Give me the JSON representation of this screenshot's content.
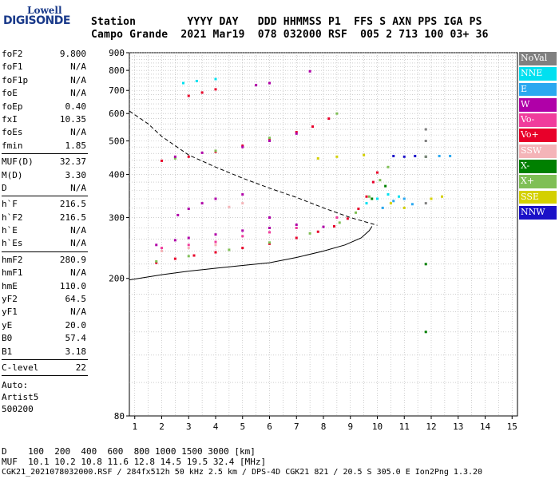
{
  "logo": {
    "line1": "Lowell",
    "line2": "DIGISONDE"
  },
  "header": {
    "row1": "Station        YYYY DAY   DDD HHMMSS P1  FFS S AXN PPS IGA PS",
    "row2": "Campo Grande  2021 Mar19  078 032000 RSF  005 2 713 100 03+ 36"
  },
  "params": [
    {
      "group": [
        {
          "k": "foF2",
          "v": "9.800"
        },
        {
          "k": "foF1",
          "v": "N/A"
        },
        {
          "k": "foF1p",
          "v": "N/A"
        },
        {
          "k": "foE",
          "v": "N/A"
        },
        {
          "k": "foEp",
          "v": "0.40"
        },
        {
          "k": "fxI",
          "v": "10.35"
        },
        {
          "k": "foEs",
          "v": "N/A"
        },
        {
          "k": "fmin",
          "v": "1.85"
        }
      ]
    },
    {
      "group": [
        {
          "k": "MUF(D)",
          "v": "32.37"
        },
        {
          "k": "M(D)",
          "v": "3.30"
        },
        {
          "k": "D",
          "v": "N/A"
        }
      ]
    },
    {
      "group": [
        {
          "k": "h`F",
          "v": "216.5"
        },
        {
          "k": "h`F2",
          "v": "216.5"
        },
        {
          "k": "h`E",
          "v": "N/A"
        },
        {
          "k": "h`Es",
          "v": "N/A"
        }
      ]
    },
    {
      "group": [
        {
          "k": "hmF2",
          "v": "280.9"
        },
        {
          "k": "hmF1",
          "v": "N/A"
        },
        {
          "k": "hmE",
          "v": "110.0"
        },
        {
          "k": "yF2",
          "v": "64.5"
        },
        {
          "k": "yF1",
          "v": "N/A"
        },
        {
          "k": "yE",
          "v": "20.0"
        },
        {
          "k": "B0",
          "v": "57.4"
        },
        {
          "k": "B1",
          "v": "3.18"
        }
      ]
    },
    {
      "group": [
        {
          "k": "C-level",
          "v": "22"
        }
      ]
    }
  ],
  "auto": {
    "line1": "Auto:",
    "line2": "Artist5",
    "line3": "500200"
  },
  "legend": [
    {
      "label": "NoVal",
      "color": "#808080"
    },
    {
      "label": "NNE",
      "color": "#00e0f0"
    },
    {
      "label": "E",
      "color": "#2aa8f0"
    },
    {
      "label": "W",
      "color": "#b000a8"
    },
    {
      "label": "Vo-",
      "color": "#f03c9c"
    },
    {
      "label": "Vo+",
      "color": "#e8002a"
    },
    {
      "label": "SSW",
      "color": "#f4b4b8"
    },
    {
      "label": "X-",
      "color": "#008000"
    },
    {
      "label": "X+",
      "color": "#7fbf55"
    },
    {
      "label": "SSE",
      "color": "#d4d000"
    },
    {
      "label": "NNW",
      "color": "#1a10c8"
    }
  ],
  "footer": {
    "row1": "D    100  200  400  600  800 1000 1500 3000 [km]",
    "row2": "MUF  10.1 10.2 10.8 11.6 12.8 14.5 19.5 32.4 [MHz]",
    "row3": "CGK21_2021078032000.RSF / 284fx512h 50 kHz 2.5 km / DPS-4D CGK21 821 / 20.5 S 305.0 E Ion2Png 1.3.20"
  },
  "chart_data": {
    "type": "scatter",
    "title": "",
    "xlabel": "",
    "ylabel": "",
    "xlim": [
      0.8,
      15.2
    ],
    "ylim": [
      80,
      900
    ],
    "y_scale": "log",
    "x_ticks": [
      "1",
      "2",
      "3",
      "4",
      "5",
      "6",
      "7",
      "8",
      "9",
      "10",
      "11",
      "12",
      "13",
      "14",
      "15"
    ],
    "y_ticks": [
      "80",
      "200",
      "300",
      "400",
      "500",
      "600",
      "700",
      "800",
      "900"
    ],
    "grid": true,
    "series": [
      {
        "name": "Vo+",
        "points": [
          [
            1.8,
            222
          ],
          [
            2.5,
            228
          ],
          [
            3.2,
            233
          ],
          [
            4,
            238
          ],
          [
            5,
            245
          ],
          [
            6,
            252
          ],
          [
            7,
            262
          ],
          [
            7.8,
            273
          ],
          [
            8.4,
            283
          ],
          [
            8.9,
            298
          ],
          [
            9.3,
            318
          ],
          [
            9.6,
            345
          ],
          [
            9.85,
            380
          ],
          [
            10.0,
            405
          ],
          [
            2,
            438
          ],
          [
            3,
            450
          ],
          [
            4,
            465
          ],
          [
            5,
            484
          ],
          [
            6,
            505
          ],
          [
            7,
            530
          ],
          [
            7.6,
            550
          ],
          [
            8.2,
            580
          ],
          [
            3,
            675
          ],
          [
            3.5,
            690
          ],
          [
            4,
            705
          ]
        ]
      },
      {
        "name": "X+",
        "points": [
          [
            1.8,
            224
          ],
          [
            3,
            232
          ],
          [
            4.5,
            242
          ],
          [
            6,
            254
          ],
          [
            7.5,
            270
          ],
          [
            8.6,
            290
          ],
          [
            9.2,
            310
          ],
          [
            9.7,
            345
          ],
          [
            10.1,
            385
          ],
          [
            10.4,
            420
          ],
          [
            2.5,
            445
          ],
          [
            4,
            468
          ],
          [
            6,
            510
          ],
          [
            8.5,
            600
          ]
        ]
      },
      {
        "name": "W",
        "points": [
          [
            1.8,
            250
          ],
          [
            2.5,
            258
          ],
          [
            3,
            262
          ],
          [
            4,
            268
          ],
          [
            5,
            275
          ],
          [
            6,
            280
          ],
          [
            7,
            286
          ],
          [
            8,
            282
          ],
          [
            2.6,
            305
          ],
          [
            3,
            318
          ],
          [
            3.5,
            330
          ],
          [
            4,
            340
          ],
          [
            5,
            350
          ],
          [
            6,
            300
          ],
          [
            2.5,
            450
          ],
          [
            3.5,
            462
          ],
          [
            5,
            480
          ],
          [
            6,
            500
          ],
          [
            7,
            525
          ],
          [
            5.5,
            725
          ],
          [
            6,
            735
          ],
          [
            7.5,
            795
          ]
        ]
      },
      {
        "name": "Vo-",
        "points": [
          [
            2,
            245
          ],
          [
            3,
            250
          ],
          [
            4,
            255
          ],
          [
            5,
            265
          ],
          [
            6,
            272
          ],
          [
            7,
            280
          ],
          [
            8.5,
            300
          ]
        ]
      },
      {
        "name": "SSW",
        "points": [
          [
            2,
            240
          ],
          [
            3,
            245
          ],
          [
            4,
            250
          ],
          [
            4.5,
            322
          ],
          [
            5,
            330
          ]
        ]
      },
      {
        "name": "NNE",
        "points": [
          [
            2.8,
            735
          ],
          [
            3.3,
            745
          ],
          [
            4,
            755
          ],
          [
            9.6,
            330
          ],
          [
            10,
            340
          ],
          [
            10.4,
            350
          ],
          [
            10.8,
            345
          ]
        ]
      },
      {
        "name": "E",
        "points": [
          [
            10.2,
            320
          ],
          [
            10.6,
            335
          ],
          [
            11,
            340
          ],
          [
            11.3,
            328
          ],
          [
            12.3,
            452
          ],
          [
            12.7,
            452
          ]
        ]
      },
      {
        "name": "SSE",
        "points": [
          [
            7.8,
            445
          ],
          [
            8.5,
            450
          ],
          [
            9.5,
            455
          ],
          [
            10.5,
            330
          ],
          [
            11,
            320
          ],
          [
            12,
            340
          ],
          [
            12.4,
            345
          ]
        ]
      },
      {
        "name": "X-",
        "points": [
          [
            9.8,
            340
          ],
          [
            10.3,
            370
          ],
          [
            11.8,
            450
          ],
          [
            11.8,
            220
          ],
          [
            11.8,
            140
          ]
        ]
      },
      {
        "name": "NNW",
        "points": [
          [
            10.6,
            452
          ],
          [
            11,
            450
          ],
          [
            11.4,
            452
          ]
        ]
      },
      {
        "name": "NoVal",
        "points": [
          [
            11.8,
            540
          ],
          [
            11.8,
            500
          ],
          [
            11.8,
            450
          ],
          [
            11.8,
            330
          ]
        ]
      }
    ],
    "profile_curve": [
      [
        0.8,
        198
      ],
      [
        2,
        205
      ],
      [
        3,
        210
      ],
      [
        4,
        214
      ],
      [
        5,
        218
      ],
      [
        6,
        222
      ],
      [
        7,
        230
      ],
      [
        8,
        240
      ],
      [
        8.8,
        250
      ],
      [
        9.4,
        262
      ],
      [
        9.7,
        275
      ],
      [
        9.8,
        283
      ]
    ],
    "muf_curve": [
      [
        0.8,
        610
      ],
      [
        1.5,
        560
      ],
      [
        2,
        515
      ],
      [
        3,
        455
      ],
      [
        4,
        420
      ],
      [
        5,
        390
      ],
      [
        6,
        365
      ],
      [
        7,
        343
      ],
      [
        8,
        320
      ],
      [
        9,
        300
      ],
      [
        10,
        285
      ]
    ]
  }
}
